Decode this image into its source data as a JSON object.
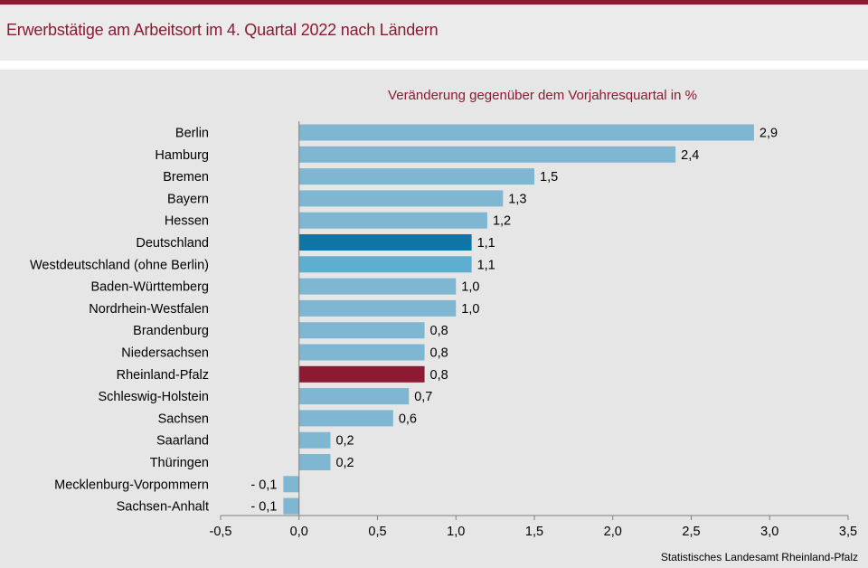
{
  "title": "Erwerbstätige am Arbeitsort im 4. Quartal 2022 nach Ländern",
  "colors": {
    "brand": "#8c1a32",
    "bar_default": "#7fb6d2",
    "bar_deutschland": "#0f74a6",
    "bar_west": "#5eaed0",
    "bar_rlp": "#8c1a32"
  },
  "chart_data": {
    "type": "bar",
    "orientation": "horizontal",
    "subtitle": "Veränderung gegenüber dem Vorjahresquartal in %",
    "categories": [
      "Berlin",
      "Hamburg",
      "Bremen",
      "Bayern",
      "Hessen",
      "Deutschland",
      "Westdeutschland (ohne Berlin)",
      "Baden-Württemberg",
      "Nordrhein-Westfalen",
      "Brandenburg",
      "Niedersachsen",
      "Rheinland-Pfalz",
      "Schleswig-Holstein",
      "Sachsen",
      "Saarland",
      "Thüringen",
      "Mecklenburg-Vorpommern",
      "Sachsen-Anhalt"
    ],
    "values": [
      2.9,
      2.4,
      1.5,
      1.3,
      1.2,
      1.1,
      1.1,
      1.0,
      1.0,
      0.8,
      0.8,
      0.8,
      0.7,
      0.6,
      0.2,
      0.2,
      -0.1,
      -0.1
    ],
    "value_labels": [
      "2,9",
      "2,4",
      "1,5",
      "1,3",
      "1,2",
      "1,1",
      "1,1",
      "1,0",
      "1,0",
      "0,8",
      "0,8",
      "0,8",
      "0,7",
      "0,6",
      "0,2",
      "0,2",
      "- 0,1",
      "- 0,1"
    ],
    "highlight": {
      "Deutschland": "bar_deutschland",
      "Westdeutschland (ohne Berlin)": "bar_west",
      "Rheinland-Pfalz": "bar_rlp"
    },
    "xlim": [
      -0.5,
      3.5
    ],
    "xticks": [
      -0.5,
      0.0,
      0.5,
      1.0,
      1.5,
      2.0,
      2.5,
      3.0,
      3.5
    ],
    "xtick_labels": [
      "-0,5",
      "0,0",
      "0,5",
      "1,0",
      "1,5",
      "2,0",
      "2,5",
      "3,0",
      "3,5"
    ],
    "grid": false
  },
  "source": "Statistisches Landesamt Rheinland-Pfalz"
}
